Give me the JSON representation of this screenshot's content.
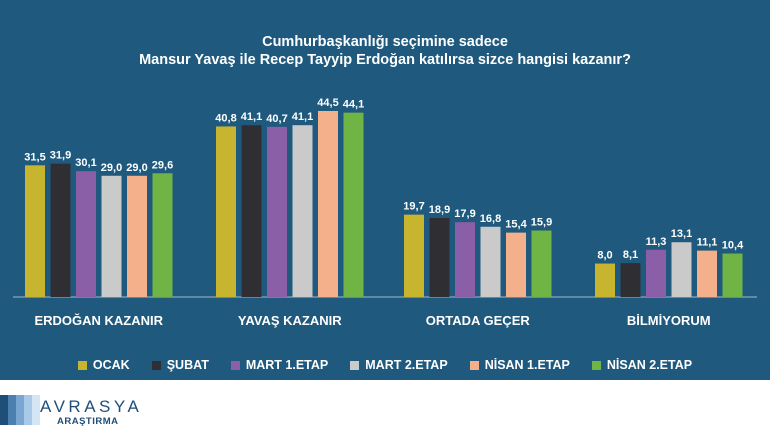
{
  "chart_data": {
    "type": "bar",
    "title_line1": "Cumhurbaşkanlığı seçimine sadece",
    "title_line2": "Mansur Yavaş ile Recep Tayyip Erdoğan katılırsa sizce hangisi kazanır?",
    "categories": [
      "ERDOĞAN KAZANIR",
      "YAVAŞ KAZANIR",
      "ORTADA GEÇER",
      "BİLMİYORUM"
    ],
    "series": [
      {
        "name": "OCAK",
        "color": "#c7b52f",
        "values": [
          31.5,
          40.8,
          19.7,
          8.0
        ],
        "labels": [
          "31,5",
          "40,8",
          "19,7",
          "8,0"
        ]
      },
      {
        "name": "ŞUBAT",
        "color": "#2f2f33",
        "values": [
          31.9,
          41.1,
          18.9,
          8.1
        ],
        "labels": [
          "31,9",
          "41,1",
          "18,9",
          "8,1"
        ]
      },
      {
        "name": "MART 1.ETAP",
        "color": "#8a5fa8",
        "values": [
          30.1,
          40.7,
          17.9,
          11.3
        ],
        "labels": [
          "30,1",
          "40,7",
          "17,9",
          "11,3"
        ]
      },
      {
        "name": "MART 2.ETAP",
        "color": "#cacaca",
        "values": [
          29.0,
          41.1,
          16.8,
          13.1
        ],
        "labels": [
          "29,0",
          "41,1",
          "16,8",
          "13,1"
        ]
      },
      {
        "name": "NİSAN 1.ETAP",
        "color": "#f3b08a",
        "values": [
          29.0,
          44.5,
          15.4,
          11.1
        ],
        "labels": [
          "29,0",
          "44,5",
          "15,4",
          "11,1"
        ]
      },
      {
        "name": "NİSAN 2.ETAP",
        "color": "#6fb444",
        "values": [
          29.6,
          44.1,
          15.9,
          10.4
        ],
        "labels": [
          "29,6",
          "44,1",
          "15,9",
          "10,4"
        ]
      }
    ],
    "ylim": [
      0,
      50
    ],
    "grid": false,
    "legend_placement": "bottom"
  },
  "brand": {
    "name": "AVRASYA",
    "sub": "ARAŞTIRMA",
    "stripe_colors": [
      "#1f4e79",
      "#4a7fb0",
      "#7aa7d2",
      "#a9c9e8",
      "#d4e5f5"
    ]
  }
}
